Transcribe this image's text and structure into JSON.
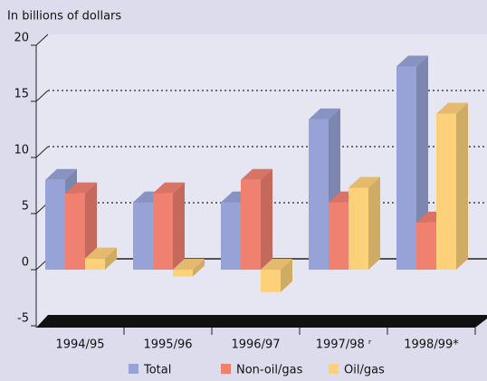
{
  "chart_data": {
    "type": "bar3d",
    "title": "In billions of dollars",
    "categories": [
      "1994/95",
      "1995/96",
      "1996/97",
      "1997/98 ʳ",
      "1998/99*"
    ],
    "series": [
      {
        "name": "Total",
        "color": "#97a3d6",
        "values": [
          8.0,
          6.0,
          6.0,
          13.4,
          18.1
        ]
      },
      {
        "name": "Non-oil/gas",
        "color": "#f08070",
        "values": [
          6.8,
          6.8,
          8.0,
          6.0,
          4.2
        ]
      },
      {
        "name": "Oil/gas",
        "color": "#fdd07a",
        "values": [
          1.0,
          -0.6,
          -2.0,
          7.3,
          13.9
        ]
      }
    ],
    "ylim": [
      -5,
      20
    ],
    "yticks": [
      -5,
      0,
      5,
      10,
      15,
      20
    ],
    "grid": true
  }
}
